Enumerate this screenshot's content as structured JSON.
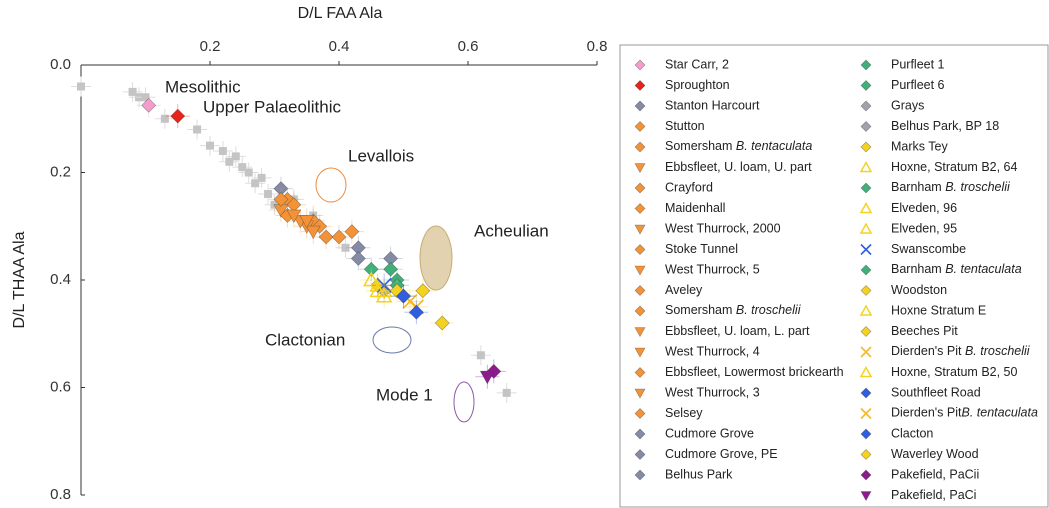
{
  "chart_data": {
    "type": "scatter",
    "xlabel": "D/L FAA Ala",
    "ylabel": "D/L THAA Ala",
    "xlim": [
      0,
      0.8
    ],
    "xticks": [
      0.2,
      0.4,
      0.6,
      0.8
    ],
    "ylim": [
      0,
      0.8
    ],
    "yticks": [
      {
        "value": 0,
        "label": "0.0"
      },
      0.2,
      0.4,
      0.6,
      0.8
    ],
    "y_inverted": true,
    "x_axis_position": "top",
    "annotations": [
      {
        "text": "Mesolithic",
        "color": "#f59ccd"
      },
      {
        "text": "Upper Palaeolithic",
        "color": "#e8231a"
      },
      {
        "text": "Levallois",
        "color": "#ef7d22"
      },
      {
        "text": "Acheulian",
        "color": "#f5c400"
      },
      {
        "text": "Clactonian",
        "color": "#2f5fe0"
      },
      {
        "text": "Mode 1",
        "color": "#8e1b8e"
      }
    ],
    "background": {
      "color": "#c4c4c4",
      "x": [
        0.0,
        0.08,
        0.09,
        0.1,
        0.13,
        0.18,
        0.2,
        0.22,
        0.23,
        0.24,
        0.25,
        0.26,
        0.27,
        0.28,
        0.29,
        0.3,
        0.33,
        0.36,
        0.41,
        0.62,
        0.66
      ],
      "values": [
        0.04,
        0.05,
        0.06,
        0.06,
        0.1,
        0.12,
        0.15,
        0.16,
        0.18,
        0.17,
        0.19,
        0.2,
        0.22,
        0.21,
        0.24,
        0.26,
        0.25,
        0.28,
        0.34,
        0.54,
        0.61
      ]
    },
    "series": [
      {
        "name": "Star Carr, 2",
        "color": "#f59ccd",
        "marker": "diamond",
        "x": [
          0.105
        ],
        "values": [
          0.075
        ]
      },
      {
        "name": "Sproughton",
        "color": "#e8231a",
        "marker": "diamond",
        "x": [
          0.15
        ],
        "values": [
          0.095
        ]
      },
      {
        "name": "Stanton Harcourt",
        "color": "#858aa6",
        "marker": "diamond",
        "x": [
          0.31
        ],
        "values": [
          0.23
        ]
      },
      {
        "name": "Stutton",
        "color": "#f39237",
        "marker": "diamond",
        "x": [
          0.32
        ],
        "values": [
          0.25
        ]
      },
      {
        "name": "Somersham B. tentaculata",
        "color": "#f39237",
        "marker": "diamond",
        "x": [
          0.33
        ],
        "values": [
          0.26
        ]
      },
      {
        "name": "Ebbsfleet, U. loam, U. part",
        "color": "#f39237",
        "marker": "tri-down",
        "x": [
          0.31
        ],
        "values": [
          0.27
        ]
      },
      {
        "name": "Crayford",
        "color": "#f39237",
        "marker": "diamond",
        "x": [
          0.32
        ],
        "values": [
          0.28
        ]
      },
      {
        "name": "Maidenhall",
        "color": "#f39237",
        "marker": "diamond",
        "x": [
          0.36
        ],
        "values": [
          0.29
        ]
      },
      {
        "name": "West Thurrock, 2000",
        "color": "#f39237",
        "marker": "tri-down",
        "x": [
          0.35
        ],
        "values": [
          0.3
        ]
      },
      {
        "name": "Stoke Tunnel",
        "color": "#f39237",
        "marker": "diamond",
        "x": [
          0.37
        ],
        "values": [
          0.3
        ]
      },
      {
        "name": "West Thurrock, 5",
        "color": "#f39237",
        "marker": "tri-down",
        "x": [
          0.34
        ],
        "values": [
          0.29
        ]
      },
      {
        "name": "Aveley",
        "color": "#f39237",
        "marker": "diamond",
        "x": [
          0.38
        ],
        "values": [
          0.32
        ]
      },
      {
        "name": "Somersham B. troschelii",
        "color": "#f39237",
        "marker": "diamond",
        "x": [
          0.4
        ],
        "values": [
          0.32
        ]
      },
      {
        "name": "Ebbsfleet, U. loam, L. part",
        "color": "#f39237",
        "marker": "tri-down",
        "x": [
          0.36
        ],
        "values": [
          0.31
        ]
      },
      {
        "name": "West Thurrock, 4",
        "color": "#f39237",
        "marker": "tri-down",
        "x": [
          0.33
        ],
        "values": [
          0.28
        ]
      },
      {
        "name": "Ebbsfleet, Lowermost brickearth",
        "color": "#f39237",
        "marker": "diamond",
        "x": [
          0.42
        ],
        "values": [
          0.31
        ]
      },
      {
        "name": "West Thurrock, 3",
        "color": "#f39237",
        "marker": "tri-down",
        "x": [
          0.35
        ],
        "values": [
          0.29
        ]
      },
      {
        "name": "Selsey",
        "color": "#f39237",
        "marker": "diamond",
        "x": [
          0.31
        ],
        "values": [
          0.25
        ]
      },
      {
        "name": "Cudmore Grove",
        "color": "#858aa6",
        "marker": "diamond",
        "x": [
          0.43
        ],
        "values": [
          0.34
        ]
      },
      {
        "name": "Cudmore Grove, PE",
        "color": "#858aa6",
        "marker": "diamond",
        "x": [
          0.43
        ],
        "values": [
          0.36
        ]
      },
      {
        "name": "Belhus Park",
        "color": "#858aa6",
        "marker": "diamond",
        "x": [
          0.48
        ],
        "values": [
          0.36
        ]
      },
      {
        "name": "Purfleet 1",
        "color": "#3fb07a",
        "marker": "diamond",
        "x": [
          0.45
        ],
        "values": [
          0.38
        ]
      },
      {
        "name": "Purfleet 6",
        "color": "#3fb07a",
        "marker": "diamond",
        "x": [
          0.49
        ],
        "values": [
          0.4
        ]
      },
      {
        "name": "Grays",
        "color": "#a2a2ad",
        "marker": "diamond",
        "x": [
          0.47
        ],
        "values": [
          0.42
        ]
      },
      {
        "name": "Belhus Park, BP 18",
        "color": "#a2a2ad",
        "marker": "diamond",
        "x": [
          0.5
        ],
        "values": [
          0.43
        ]
      },
      {
        "name": "Marks Tey",
        "color": "#f5d21f",
        "marker": "diamond",
        "x": [
          0.46
        ],
        "values": [
          0.41
        ]
      },
      {
        "name": "Hoxne, Stratum B2, 64",
        "color": "#f5d21f",
        "marker": "tri-up",
        "x": [
          0.47
        ],
        "values": [
          0.42
        ]
      },
      {
        "name": "Barnham B. troschelii",
        "color": "#3fb07a",
        "marker": "diamond",
        "x": [
          0.48
        ],
        "values": [
          0.38
        ]
      },
      {
        "name": "Elveden, 96",
        "color": "#f5d21f",
        "marker": "tri-up",
        "x": [
          0.45
        ],
        "values": [
          0.4
        ]
      },
      {
        "name": "Elveden, 95",
        "color": "#f5d21f",
        "marker": "tri-up",
        "x": [
          0.46
        ],
        "values": [
          0.41
        ]
      },
      {
        "name": "Swanscombe",
        "color": "#2f5fe0",
        "marker": "cross",
        "x": [
          0.47
        ],
        "values": [
          0.41
        ]
      },
      {
        "name": "Barnham B. tentaculata",
        "color": "#3fb07a",
        "marker": "diamond",
        "x": [
          0.49
        ],
        "values": [
          0.41
        ]
      },
      {
        "name": "Woodston",
        "color": "#f5d21f",
        "marker": "diamond",
        "x": [
          0.53
        ],
        "values": [
          0.42
        ]
      },
      {
        "name": "Hoxne Stratum E",
        "color": "#f5d21f",
        "marker": "tri-up",
        "x": [
          0.47
        ],
        "values": [
          0.43
        ]
      },
      {
        "name": "Beeches Pit",
        "color": "#f5d21f",
        "marker": "diamond",
        "x": [
          0.49
        ],
        "values": [
          0.42
        ]
      },
      {
        "name": "Dierden's Pit B. troschelii",
        "color": "#f5b82a",
        "marker": "cross",
        "x": [
          0.51
        ],
        "values": [
          0.44
        ]
      },
      {
        "name": "Hoxne, Stratum B2, 50",
        "color": "#f5d21f",
        "marker": "tri-up",
        "x": [
          0.46
        ],
        "values": [
          0.42
        ]
      },
      {
        "name": "Southfleet Road",
        "color": "#2f5fe0",
        "marker": "diamond",
        "x": [
          0.5
        ],
        "values": [
          0.43
        ]
      },
      {
        "name": "Dierden's PitB. tentaculata",
        "color": "#f5b82a",
        "marker": "cross",
        "x": [
          0.52
        ],
        "values": [
          0.45
        ]
      },
      {
        "name": "Clacton",
        "color": "#2f5fe0",
        "marker": "diamond",
        "x": [
          0.52
        ],
        "values": [
          0.46
        ]
      },
      {
        "name": "Waverley Wood",
        "color": "#f5d21f",
        "marker": "diamond",
        "x": [
          0.56
        ],
        "values": [
          0.48
        ]
      },
      {
        "name": "Pakefield, PaCii",
        "color": "#8e1b8e",
        "marker": "diamond",
        "x": [
          0.64
        ],
        "values": [
          0.57
        ]
      },
      {
        "name": "Pakefield, PaCi",
        "color": "#8e1b8e",
        "marker": "tri-down",
        "x": [
          0.63
        ],
        "values": [
          0.58
        ]
      }
    ]
  }
}
